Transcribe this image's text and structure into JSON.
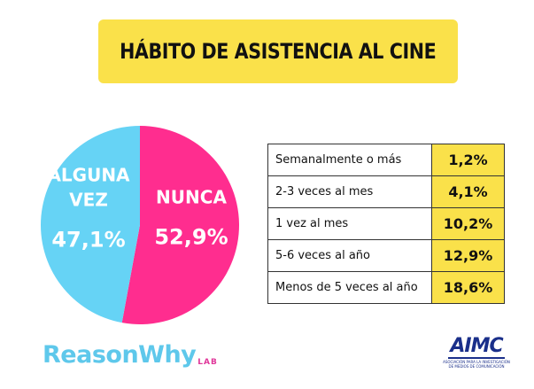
{
  "title": "HÁBITO DE ASISTENCIA AL CINE",
  "chart_data": {
    "type": "pie",
    "slices": [
      {
        "label_lines": [
          "NUNCA"
        ],
        "value": 52.9,
        "value_label": "52,9%",
        "color": "#ff2d8f"
      },
      {
        "label_lines": [
          "ALGUNA",
          "VEZ"
        ],
        "value": 47.1,
        "value_label": "47,1%",
        "color": "#66d3f5"
      }
    ]
  },
  "table": {
    "rows": [
      {
        "label": "Semanalmente o más",
        "value": "1,2%"
      },
      {
        "label": "2-3 veces al mes",
        "value": "4,1%"
      },
      {
        "label": "1 vez al mes",
        "value": "10,2%"
      },
      {
        "label": "5-6 veces al año",
        "value": "12,9%"
      },
      {
        "label": "Menos de 5 veces al año",
        "value": "18,6%"
      }
    ]
  },
  "logos": {
    "reasonwhy": "ReasonWhy",
    "reasonwhy_sub": "LAB",
    "aimc": "AIMC",
    "aimc_sub": "ASOCIACIÓN PARA LA INVESTIGACIÓN DE MEDIOS DE COMUNICACIÓN"
  },
  "colors": {
    "accent_yellow": "#fae14a",
    "pink": "#ff2d8f",
    "blue": "#66d3f5"
  }
}
